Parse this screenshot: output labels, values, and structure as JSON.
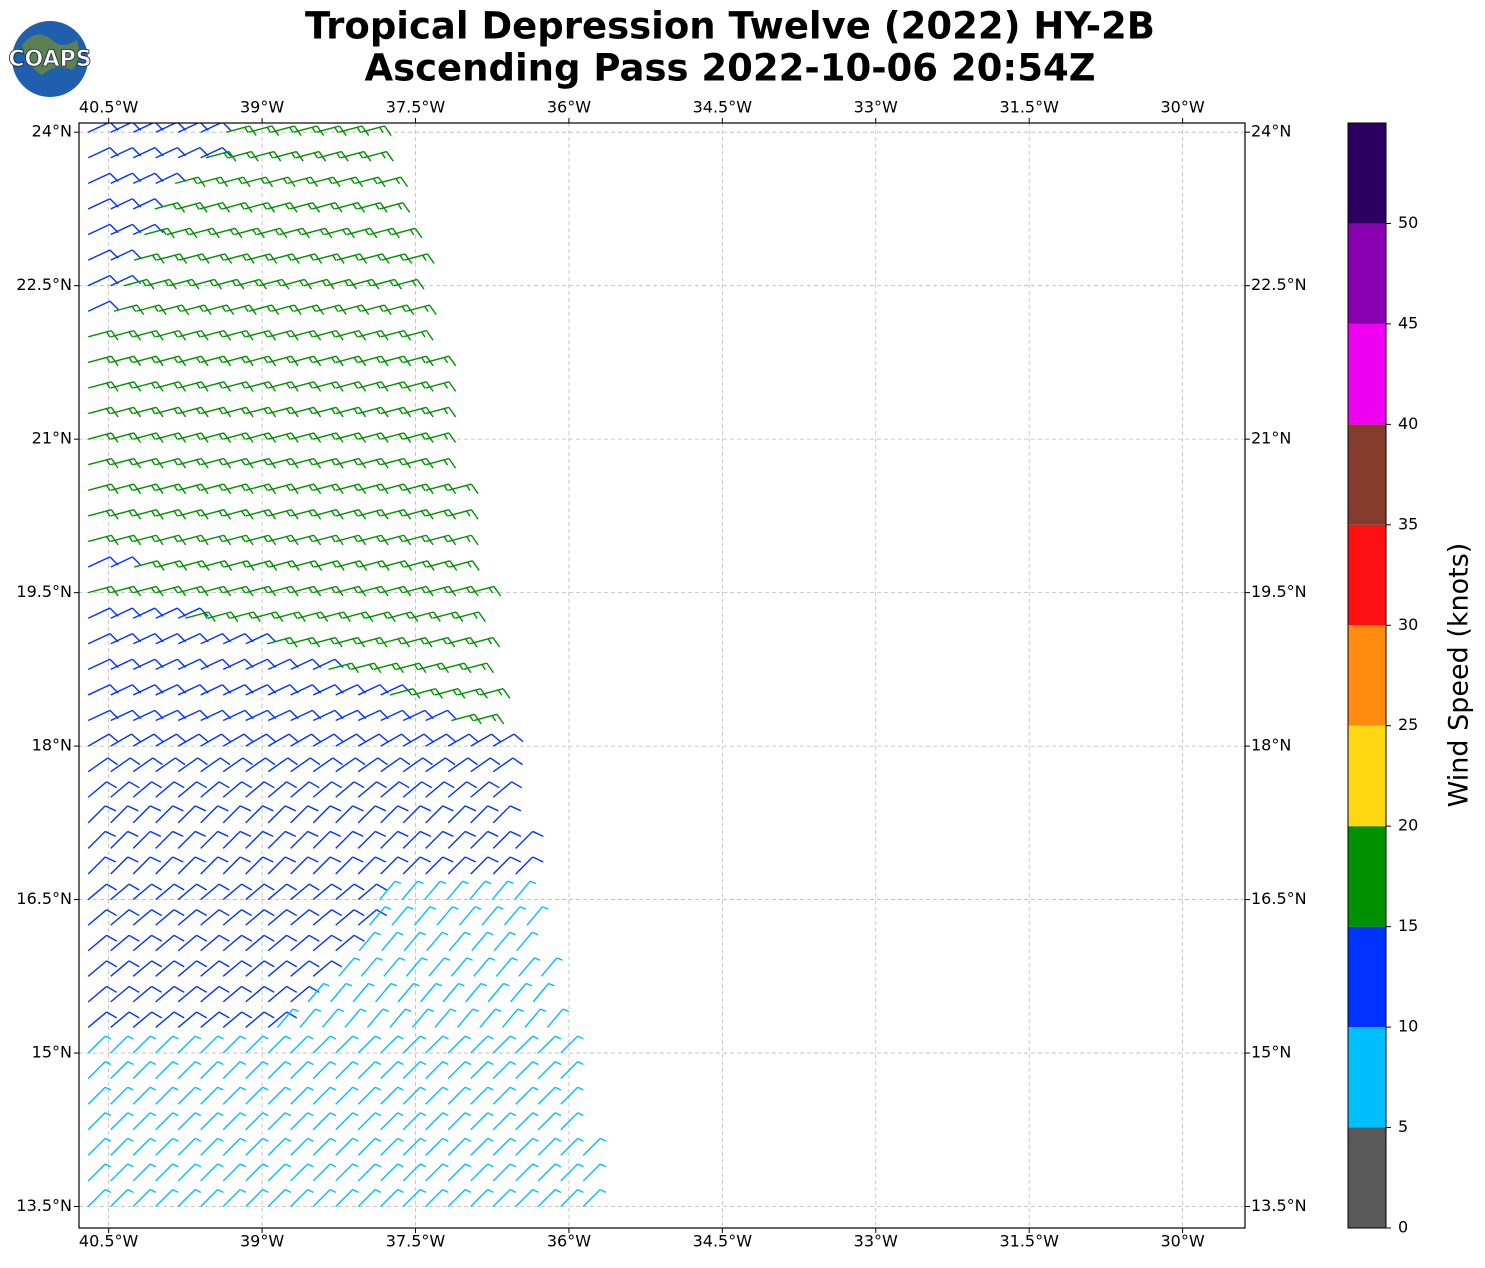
{
  "title": [
    "Tropical Depression Twelve (2022) HY-2B",
    "Ascending Pass 2022-10-06 20:54Z"
  ],
  "logo": "COAPS",
  "map": {
    "lonlim": [
      -40.79,
      -29.39
    ],
    "latlim": [
      13.29,
      24.09
    ],
    "grid": true,
    "lonticks": [
      {
        "value": -40.5,
        "label": "40.5°W"
      },
      {
        "value": -39,
        "label": "39°W"
      },
      {
        "value": -37.5,
        "label": "37.5°W"
      },
      {
        "value": -36,
        "label": "36°W"
      },
      {
        "value": -34.5,
        "label": "34.5°W"
      },
      {
        "value": -33,
        "label": "33°W"
      },
      {
        "value": -31.5,
        "label": "31.5°W"
      },
      {
        "value": -30,
        "label": "30°W"
      }
    ],
    "latticks": [
      {
        "value": 24,
        "label": "24°N"
      },
      {
        "value": 22.5,
        "label": "22.5°N"
      },
      {
        "value": 21,
        "label": "21°N"
      },
      {
        "value": 19.5,
        "label": "19.5°N"
      },
      {
        "value": 18,
        "label": "18°N"
      },
      {
        "value": 16.5,
        "label": "16.5°N"
      },
      {
        "value": 15,
        "label": "15°N"
      },
      {
        "value": 13.5,
        "label": "13.5°N"
      }
    ]
  },
  "swath": {
    "rows": [
      {
        "lat": 24.0,
        "segments": [
          [
            -40.7,
            -39.4,
            12,
            65
          ],
          [
            -39.35,
            -37.9,
            17,
            75
          ]
        ]
      },
      {
        "lat": 23.75,
        "segments": [
          [
            -40.7,
            -39.6,
            12,
            65
          ],
          [
            -39.55,
            -37.85,
            17,
            75
          ]
        ]
      },
      {
        "lat": 23.5,
        "segments": [
          [
            -40.7,
            -39.9,
            12,
            65
          ],
          [
            -39.85,
            -37.8,
            17,
            75
          ]
        ]
      },
      {
        "lat": 23.25,
        "segments": [
          [
            -40.7,
            -40.1,
            12,
            65
          ],
          [
            -40.05,
            -37.75,
            17,
            75
          ]
        ]
      },
      {
        "lat": 23.0,
        "segments": [
          [
            -40.7,
            -40.2,
            12,
            65
          ],
          [
            -40.15,
            -37.7,
            17,
            75
          ]
        ]
      },
      {
        "lat": 22.75,
        "segments": [
          [
            -40.7,
            -40.3,
            12,
            65
          ],
          [
            -40.25,
            -37.6,
            17,
            75
          ]
        ]
      },
      {
        "lat": 22.5,
        "segments": [
          [
            -40.7,
            -40.4,
            12,
            65
          ],
          [
            -40.35,
            -37.55,
            17,
            75
          ]
        ]
      },
      {
        "lat": 22.25,
        "segments": [
          [
            -40.7,
            -40.5,
            12,
            65
          ],
          [
            -40.45,
            -37.5,
            17,
            75
          ]
        ]
      },
      {
        "lat": 22.0,
        "segments": [
          [
            -40.7,
            -37.45,
            17,
            75
          ]
        ]
      },
      {
        "lat": 21.75,
        "segments": [
          [
            -40.7,
            -37.4,
            17,
            75
          ]
        ]
      },
      {
        "lat": 21.5,
        "segments": [
          [
            -40.7,
            -37.35,
            17,
            75
          ]
        ]
      },
      {
        "lat": 21.25,
        "segments": [
          [
            -40.7,
            -37.3,
            17,
            75
          ]
        ]
      },
      {
        "lat": 21.0,
        "segments": [
          [
            -40.7,
            -37.25,
            17,
            75
          ]
        ]
      },
      {
        "lat": 20.75,
        "segments": [
          [
            -40.7,
            -37.2,
            17,
            75
          ]
        ]
      },
      {
        "lat": 20.5,
        "segments": [
          [
            -40.7,
            -37.15,
            17,
            75
          ]
        ]
      },
      {
        "lat": 20.25,
        "segments": [
          [
            -40.7,
            -37.1,
            17,
            75
          ]
        ]
      },
      {
        "lat": 20.0,
        "segments": [
          [
            -40.7,
            -37.05,
            17,
            75
          ]
        ]
      },
      {
        "lat": 19.75,
        "segments": [
          [
            -40.7,
            -40.3,
            12,
            65
          ],
          [
            -40.25,
            -37.0,
            17,
            75
          ]
        ]
      },
      {
        "lat": 19.5,
        "segments": [
          [
            -40.7,
            -36.95,
            17,
            75
          ]
        ]
      },
      {
        "lat": 19.25,
        "segments": [
          [
            -40.7,
            -39.8,
            12,
            65
          ],
          [
            -39.75,
            -36.95,
            17,
            75
          ]
        ]
      },
      {
        "lat": 19.0,
        "segments": [
          [
            -40.7,
            -39.0,
            12,
            65
          ],
          [
            -38.95,
            -36.9,
            17,
            75
          ]
        ]
      },
      {
        "lat": 18.75,
        "segments": [
          [
            -40.7,
            -38.4,
            12,
            65
          ],
          [
            -38.35,
            -36.85,
            17,
            75
          ]
        ]
      },
      {
        "lat": 18.5,
        "segments": [
          [
            -40.7,
            -37.8,
            12,
            65
          ],
          [
            -37.75,
            -36.8,
            17,
            75
          ]
        ]
      },
      {
        "lat": 18.25,
        "segments": [
          [
            -40.7,
            -37.2,
            12,
            65
          ],
          [
            -37.15,
            -36.75,
            17,
            75
          ]
        ]
      },
      {
        "lat": 18.0,
        "segments": [
          [
            -40.7,
            -36.7,
            12,
            60
          ]
        ]
      },
      {
        "lat": 17.75,
        "segments": [
          [
            -40.7,
            -36.6,
            12,
            55
          ]
        ]
      },
      {
        "lat": 17.5,
        "segments": [
          [
            -40.7,
            -36.55,
            12,
            50
          ]
        ]
      },
      {
        "lat": 17.25,
        "segments": [
          [
            -40.7,
            -36.55,
            12,
            45
          ]
        ]
      },
      {
        "lat": 17.0,
        "segments": [
          [
            -40.7,
            -36.5,
            12,
            45
          ]
        ]
      },
      {
        "lat": 16.75,
        "segments": [
          [
            -40.7,
            -36.45,
            12,
            45
          ]
        ]
      },
      {
        "lat": 16.5,
        "segments": [
          [
            -40.7,
            -37.9,
            12,
            50
          ],
          [
            -37.85,
            -36.4,
            7,
            40
          ]
        ]
      },
      {
        "lat": 16.25,
        "segments": [
          [
            -40.7,
            -38.0,
            12,
            50
          ],
          [
            -37.95,
            -36.35,
            7,
            40
          ]
        ]
      },
      {
        "lat": 16.0,
        "segments": [
          [
            -40.7,
            -38.1,
            12,
            50
          ],
          [
            -38.05,
            -36.3,
            7,
            40
          ]
        ]
      },
      {
        "lat": 15.75,
        "segments": [
          [
            -40.7,
            -38.3,
            12,
            50
          ],
          [
            -38.25,
            -36.2,
            7,
            40
          ]
        ]
      },
      {
        "lat": 15.5,
        "segments": [
          [
            -40.7,
            -38.6,
            12,
            50
          ],
          [
            -38.55,
            -36.15,
            7,
            40
          ]
        ]
      },
      {
        "lat": 15.25,
        "segments": [
          [
            -40.7,
            -38.9,
            12,
            50
          ],
          [
            -38.85,
            -36.1,
            7,
            40
          ]
        ]
      },
      {
        "lat": 15.0,
        "segments": [
          [
            -40.7,
            -36.05,
            7,
            45
          ]
        ]
      },
      {
        "lat": 14.75,
        "segments": [
          [
            -40.7,
            -36.0,
            7,
            45
          ]
        ]
      },
      {
        "lat": 14.5,
        "segments": [
          [
            -40.7,
            -35.95,
            7,
            45
          ]
        ]
      },
      {
        "lat": 14.25,
        "segments": [
          [
            -40.7,
            -35.9,
            7,
            45
          ]
        ]
      },
      {
        "lat": 14.0,
        "segments": [
          [
            -40.7,
            -35.85,
            7,
            45
          ]
        ]
      },
      {
        "lat": 13.75,
        "segments": [
          [
            -40.7,
            -35.8,
            7,
            45
          ]
        ]
      },
      {
        "lat": 13.5,
        "segments": [
          [
            -40.7,
            -35.75,
            7,
            45
          ]
        ]
      }
    ]
  },
  "colorbar": {
    "label": "Wind Speed (knots)",
    "range": [
      0,
      55
    ],
    "ticks": [
      0,
      5,
      10,
      15,
      20,
      25,
      30,
      35,
      40,
      45,
      50
    ],
    "bands": [
      {
        "from": 0,
        "to": 5,
        "color": "#595959"
      },
      {
        "from": 5,
        "to": 10,
        "color": "#00bfff"
      },
      {
        "from": 10,
        "to": 15,
        "color": "#0033ff"
      },
      {
        "from": 15,
        "to": 20,
        "color": "#009100"
      },
      {
        "from": 20,
        "to": 25,
        "color": "#ffd712"
      },
      {
        "from": 25,
        "to": 30,
        "color": "#ff8c0f"
      },
      {
        "from": 30,
        "to": 35,
        "color": "#ff1010"
      },
      {
        "from": 35,
        "to": 40,
        "color": "#843c2c"
      },
      {
        "from": 40,
        "to": 45,
        "color": "#f000f0"
      },
      {
        "from": 45,
        "to": 50,
        "color": "#8800b0"
      },
      {
        "from": 50,
        "to": 55,
        "color": "#2c0060"
      }
    ]
  }
}
